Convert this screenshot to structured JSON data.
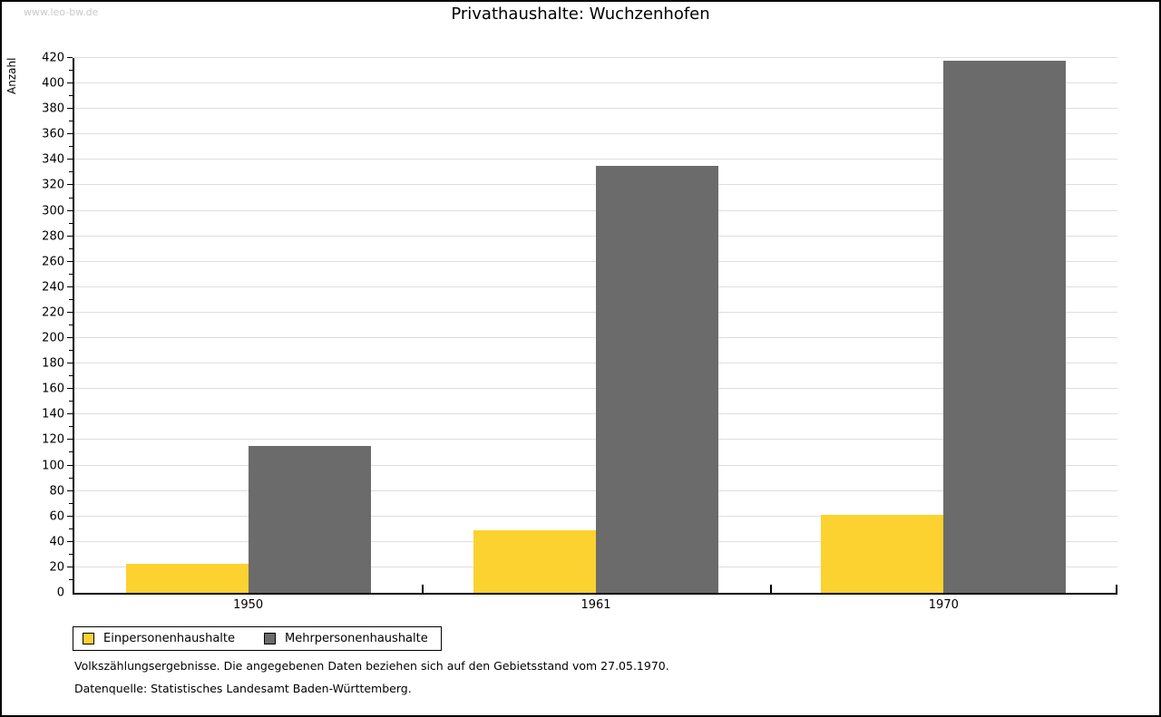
{
  "watermark": "www.leo-bw.de",
  "chart_data": {
    "type": "bar",
    "title": "Privathaushalte: Wuchzenhofen",
    "ylabel": "Anzahl",
    "xlabel": "",
    "categories": [
      "1950",
      "1961",
      "1970"
    ],
    "series": [
      {
        "name": "Einpersonenhaushalte",
        "color": "#FCD230",
        "values": [
          23,
          49,
          61
        ]
      },
      {
        "name": "Mehrpersonenhaushalte",
        "color": "#6B6B6B",
        "values": [
          115,
          335,
          418
        ]
      }
    ],
    "ylim": [
      0,
      420
    ],
    "ytick_step": 20,
    "yminor_step": 10,
    "grid": true,
    "legend_position": "bottom-left"
  },
  "colors": {
    "axis": "#000000",
    "grid": "#dedede",
    "watermark": "#c9c9c9",
    "background": "#ffffff"
  },
  "footnotes": [
    "Volkszählungsergebnisse. Die angegebenen Daten beziehen sich auf den Gebietsstand vom 27.05.1970.",
    "Datenquelle: Statistisches Landesamt Baden-Württemberg."
  ]
}
